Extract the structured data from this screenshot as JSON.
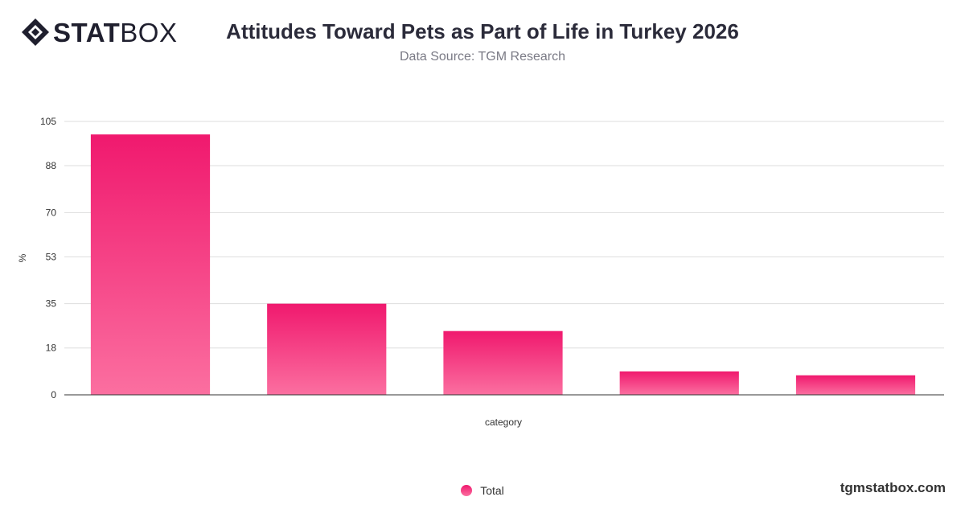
{
  "brand": {
    "logo_bold": "STAT",
    "logo_light": "BOX",
    "website": "tgmstatbox.com"
  },
  "chart_data": {
    "type": "bar",
    "title": "Attitudes Toward Pets as Part of Life in Turkey 2026",
    "subtitle": "Data Source: TGM Research",
    "xlabel": "category",
    "ylabel": "%",
    "categories": [
      "",
      "",
      "",
      "",
      ""
    ],
    "series": [
      {
        "name": "Total",
        "values": [
          100,
          35,
          24.5,
          9,
          7.5
        ]
      }
    ],
    "ylim": [
      0,
      105
    ],
    "yticks": [
      0,
      18,
      35,
      53,
      70,
      88,
      105
    ],
    "grid": true,
    "legend_position": "bottom",
    "colors": {
      "bar_top": "#f0196e",
      "bar_bottom": "#fb6fa0",
      "grid": "#dddddd",
      "axis": "#333333"
    }
  }
}
